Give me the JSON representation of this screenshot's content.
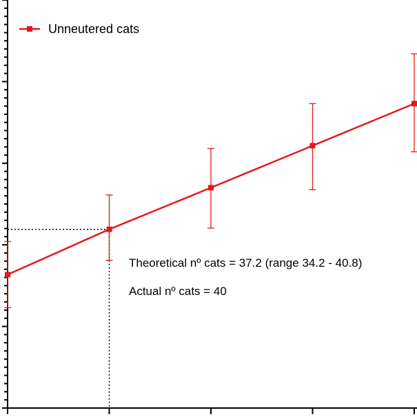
{
  "chart_data": {
    "type": "line",
    "title": "",
    "xlabel": "",
    "ylabel": "",
    "x": [
      0,
      1,
      2,
      3,
      4
    ],
    "xlim": [
      0,
      4
    ],
    "ylim": [
      0,
      100
    ],
    "grid": false,
    "legend_position": "top-left",
    "series": [
      {
        "name": "Unneutered cats",
        "color": "#e31a1c",
        "values": [
          32.7,
          43.8,
          54.0,
          64.3,
          74.6
        ],
        "error_low": [
          24.6,
          36.2,
          44.1,
          53.5,
          62.8
        ],
        "error_high": [
          40.8,
          52.2,
          63.6,
          74.6,
          86.8
        ]
      }
    ],
    "reference_lines": {
      "x": 1,
      "y": 43.8
    },
    "annotations": [
      "Theoretical nº cats = 37.2 (range 34.2 - 40.8)",
      "Actual nº cats = 40"
    ]
  }
}
